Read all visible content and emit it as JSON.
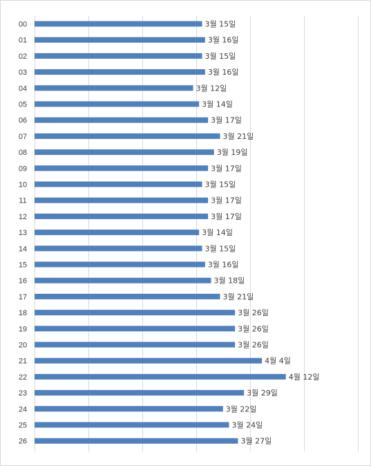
{
  "chart_data": {
    "type": "bar",
    "orientation": "horizontal",
    "categories": [
      "00",
      "01",
      "02",
      "03",
      "04",
      "05",
      "06",
      "07",
      "08",
      "09",
      "10",
      "11",
      "12",
      "13",
      "14",
      "15",
      "16",
      "17",
      "18",
      "19",
      "20",
      "21",
      "22",
      "23",
      "24",
      "25",
      "26"
    ],
    "values": [
      "2024-03-15",
      "2024-03-16",
      "2024-03-15",
      "2024-03-16",
      "2024-03-12",
      "2024-03-14",
      "2024-03-17",
      "2024-03-21",
      "2024-03-19",
      "2024-03-17",
      "2024-03-15",
      "2024-03-17",
      "2024-03-17",
      "2024-03-14",
      "2024-03-15",
      "2024-03-16",
      "2024-03-18",
      "2024-03-21",
      "2024-03-26",
      "2024-03-26",
      "2024-03-26",
      "2024-04-04",
      "2024-04-12",
      "2024-03-29",
      "2024-03-22",
      "2024-03-24",
      "2024-03-27"
    ],
    "data_labels": [
      "3월 15일",
      "3월 16일",
      "3월 15일",
      "3월 16일",
      "3월 12일",
      "3월 14일",
      "3월 17일",
      "3월 21일",
      "3월 19일",
      "3월 17일",
      "3월 15일",
      "3월 17일",
      "3월 17일",
      "3월 14일",
      "3월 15일",
      "3월 16일",
      "3월 18일",
      "3월 21일",
      "3월 26일",
      "3월 26일",
      "3월 26일",
      "4월 4일",
      "4월 12일",
      "3월 29일",
      "3월 22일",
      "3월 24일",
      "3월 27일"
    ],
    "xlim": [
      "2024-01-19",
      "2024-05-07"
    ],
    "x_gridline_interval_days": 18,
    "grid": true,
    "legend": "none",
    "title": "",
    "xlabel": "",
    "ylabel": "",
    "bar_color": "#4f81bd",
    "gridline_color": "#d9d9d9",
    "label_color": "#404040"
  }
}
